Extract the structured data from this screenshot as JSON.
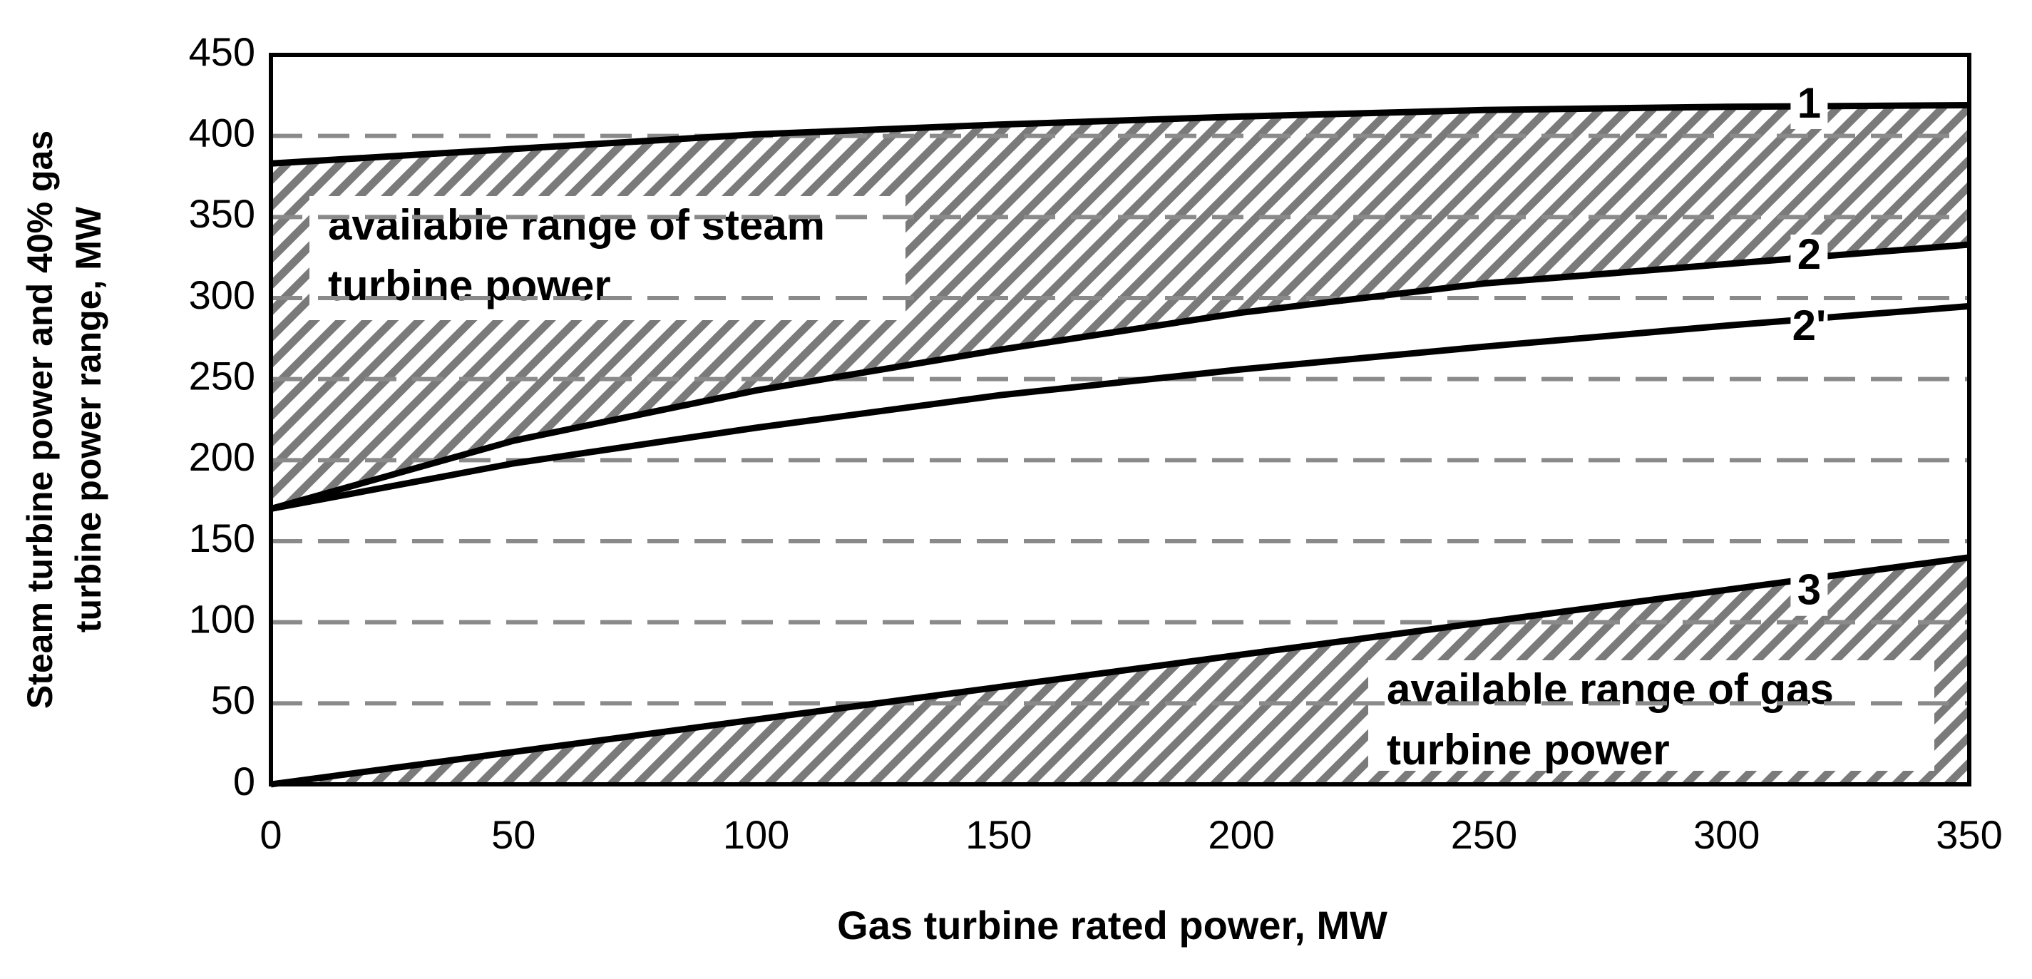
{
  "chart_data": {
    "type": "line",
    "xlabel": "Gas turbine rated power, MW",
    "ylabel": [
      "Steam turbine power and 40% gas",
      "turbine power range, MW"
    ],
    "x": [
      0,
      50,
      100,
      150,
      200,
      250,
      300,
      350
    ],
    "series": [
      {
        "name": "1",
        "color": "#000000",
        "values": [
          383,
          392,
          401,
          407,
          412,
          416,
          418,
          419
        ]
      },
      {
        "name": "2",
        "color": "#000000",
        "values": [
          170,
          212,
          243,
          268,
          291,
          309,
          321,
          333
        ]
      },
      {
        "name": "2'",
        "color": "#000000",
        "values": [
          170,
          198,
          220,
          240,
          256,
          270,
          283,
          295
        ]
      },
      {
        "name": "3",
        "color": "#000000",
        "values": [
          0,
          20,
          40,
          60,
          80,
          100,
          120,
          140
        ]
      }
    ],
    "annotations": [
      {
        "lines": [
          "available range of steam",
          "turbine power"
        ]
      },
      {
        "lines": [
          "available range of gas",
          "turbine power"
        ]
      }
    ],
    "xlim": [
      0,
      350
    ],
    "xticks": [
      0,
      50,
      100,
      150,
      200,
      250,
      300,
      350
    ],
    "ylim": [
      0,
      450
    ],
    "yticks": [
      0,
      50,
      100,
      150,
      200,
      250,
      300,
      350,
      400,
      450
    ],
    "grid": true
  }
}
